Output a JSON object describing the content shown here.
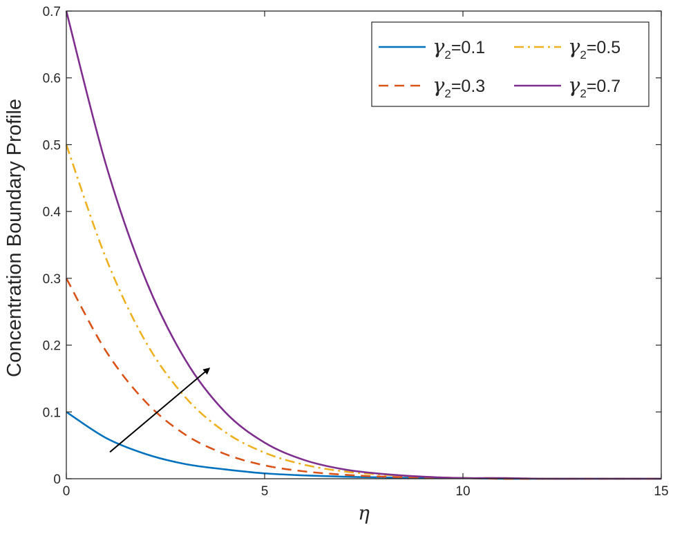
{
  "chart_data": {
    "type": "line",
    "xlabel": "η",
    "ylabel": "Concentration Boundary Profile",
    "xlim": [
      0,
      15
    ],
    "ylim": [
      0,
      0.7
    ],
    "xticks": [
      "0",
      "5",
      "10",
      "15"
    ],
    "yticks": [
      "0",
      "0.1",
      "0.2",
      "0.3",
      "0.4",
      "0.5",
      "0.6",
      "0.7"
    ],
    "grid": false,
    "legend_placement": "top-right",
    "series": [
      {
        "name": "γ2=0.1",
        "legend_symbol": "γ",
        "legend_sub": "2",
        "legend_value": "=0.1",
        "color": "#0072BD",
        "style": "solid",
        "x": [
          0,
          1,
          2,
          3,
          4,
          5,
          6,
          7,
          8,
          9,
          10,
          11,
          12,
          13,
          14,
          15
        ],
        "y": [
          0.1,
          0.061,
          0.037,
          0.022,
          0.014,
          0.008,
          0.005,
          0.003,
          0.002,
          0.001,
          0.001,
          0.0,
          0.0,
          0.0,
          0.0,
          0.0
        ]
      },
      {
        "name": "γ2=0.3",
        "legend_symbol": "γ",
        "legend_sub": "2",
        "legend_value": "=0.3",
        "color": "#D95319",
        "style": "dashed",
        "x": [
          0,
          1,
          2,
          3,
          4,
          5,
          6,
          7,
          8,
          9,
          10,
          11,
          12,
          13,
          14,
          15
        ],
        "y": [
          0.3,
          0.191,
          0.115,
          0.066,
          0.037,
          0.02,
          0.011,
          0.006,
          0.003,
          0.002,
          0.001,
          0.0,
          0.0,
          0.0,
          0.0,
          0.0
        ]
      },
      {
        "name": "γ2=0.5",
        "legend_symbol": "γ",
        "legend_sub": "2",
        "legend_value": "=0.5",
        "color": "#EDB120",
        "style": "dashdot",
        "x": [
          0,
          1,
          2,
          3,
          4,
          5,
          6,
          7,
          8,
          9,
          10,
          11,
          12,
          13,
          14,
          15
        ],
        "y": [
          0.5,
          0.33,
          0.205,
          0.122,
          0.07,
          0.039,
          0.021,
          0.011,
          0.006,
          0.003,
          0.001,
          0.001,
          0.0,
          0.0,
          0.0,
          0.0
        ]
      },
      {
        "name": "γ2=0.7",
        "legend_symbol": "γ",
        "legend_sub": "2",
        "legend_value": "=0.7",
        "color": "#7E2F8E",
        "style": "solid",
        "x": [
          0,
          1,
          2,
          3,
          4,
          5,
          6,
          7,
          8,
          9,
          10,
          11,
          12,
          13,
          14,
          15
        ],
        "y": [
          0.7,
          0.47,
          0.298,
          0.178,
          0.1,
          0.054,
          0.028,
          0.014,
          0.007,
          0.003,
          0.001,
          0.001,
          0.0,
          0.0,
          0.0,
          0.0
        ]
      }
    ],
    "annotations": [
      {
        "type": "arrow",
        "from": [
          1.1,
          0.04
        ],
        "to": [
          3.6,
          0.165
        ],
        "color": "#000000"
      }
    ]
  }
}
